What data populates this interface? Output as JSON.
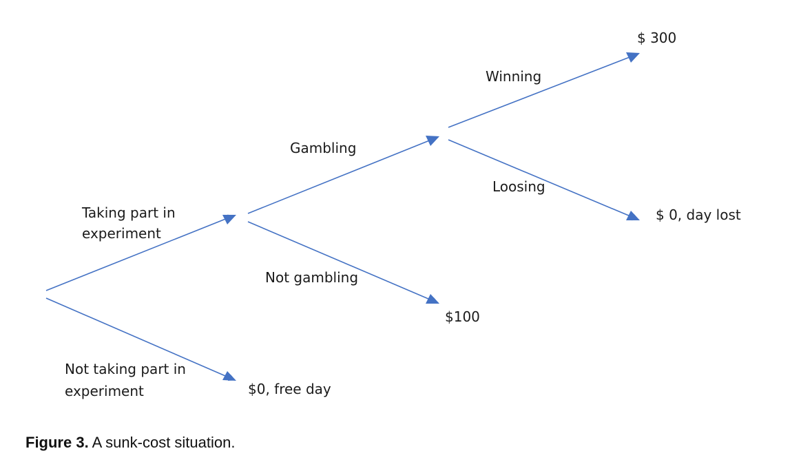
{
  "colors": {
    "edge": "#4472c4",
    "text": "#1a1a1a"
  },
  "diagram": {
    "branches": {
      "taking_part": [
        "Taking part in",
        "experiment"
      ],
      "not_taking_part": [
        "Not taking part in",
        "experiment"
      ],
      "gambling": "Gambling",
      "not_gambling": "Not gambling",
      "winning": "Winning",
      "losing": "Loosing"
    },
    "outcomes": {
      "free_day": "$0, free day",
      "hundred": "$100",
      "three_hundred": "$ 300",
      "day_lost": "$ 0, day lost"
    }
  },
  "caption": {
    "lead": "Figure 3.",
    "text": " A sunk-cost situation."
  }
}
